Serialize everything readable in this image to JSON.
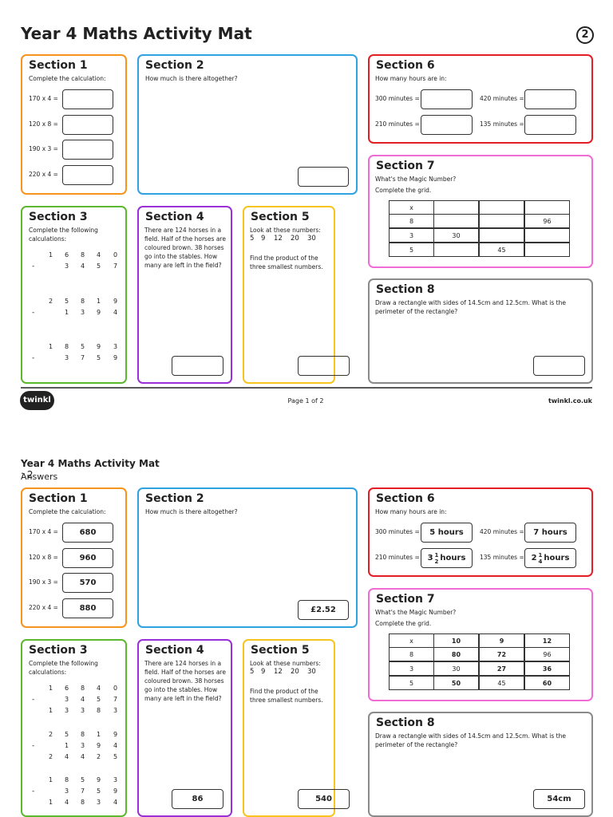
{
  "pages": [
    {
      "title": "Year 4 Maths Activity Mat",
      "badge": "2",
      "section1": {
        "heading": "Section 1",
        "prompt": "Complete the calculation:",
        "items": [
          {
            "question": "170 x 4 ="
          },
          {
            "question": "120 x 8 ="
          },
          {
            "question": "190 x 3 ="
          },
          {
            "question": "220 x 4 ="
          }
        ]
      },
      "section2": {
        "heading": "Section 2",
        "prompt": "How much is there altogether?"
      },
      "section3": {
        "heading": "Section 3",
        "prompt": "Complete the following calculations:",
        "sums": [
          {
            "top": "16840",
            "operator": "-",
            "bottom": "3457"
          },
          {
            "top": "25819",
            "operator": "-",
            "bottom": "1394"
          },
          {
            "top": "18593",
            "operator": "-",
            "bottom": "3759"
          }
        ]
      },
      "section4": {
        "heading": "Section 4",
        "text": "There are 124 horses in a field. Half of the horses are coloured brown. 38 horses go into the stables. How many are left in the field?"
      },
      "section5": {
        "heading": "Section 5",
        "prompt": "Look at these numbers:",
        "numbers": [
          "5",
          "9",
          "12",
          "20",
          "30"
        ],
        "text": "Find the product of the three smallest numbers."
      },
      "section6": {
        "heading": "Section 6",
        "prompt": "How many hours are in:",
        "items": [
          {
            "question": "300 minutes ="
          },
          {
            "question": "420 minutes ="
          },
          {
            "question": "210 minutes ="
          },
          {
            "question": "135 minutes ="
          }
        ]
      },
      "section7": {
        "heading": "Section 7",
        "prompt": "What's the Magic Number?",
        "prompt2": "Complete the grid.",
        "grid": [
          [
            "x",
            null,
            null,
            null
          ],
          [
            "8",
            null,
            null,
            "96"
          ],
          [
            "3",
            "30",
            null,
            null
          ],
          [
            "5",
            null,
            "45",
            null
          ]
        ]
      },
      "section8": {
        "heading": "Section 8",
        "text": "Draw a rectangle with sides of 14.5cm and 12.5cm. What is the perimeter of the rectangle?"
      }
    },
    {
      "title": "Year 4 Maths Activity Mat",
      "title_suffix": ": 2",
      "subtitle": "Answers",
      "section1": {
        "heading": "Section 1",
        "prompt": "Complete the calculation:",
        "items": [
          {
            "question": "170 x 4 =",
            "answer": "680"
          },
          {
            "question": "120 x 8 =",
            "answer": "960"
          },
          {
            "question": "190 x 3 =",
            "answer": "570"
          },
          {
            "question": "220 x 4 =",
            "answer": "880"
          }
        ]
      },
      "section2": {
        "heading": "Section 2",
        "prompt": "How much is there altogether?",
        "answer": "£2.52"
      },
      "section3": {
        "heading": "Section 3",
        "prompt": "Complete the following calculations:",
        "sums": [
          {
            "top": "16840",
            "operator": "-",
            "bottom": "3457",
            "result": "13383"
          },
          {
            "top": "25819",
            "operator": "-",
            "bottom": "1394",
            "result": "24425"
          },
          {
            "top": "18593",
            "operator": "-",
            "bottom": "3759",
            "result": "14834"
          }
        ]
      },
      "section4": {
        "heading": "Section 4",
        "text": "There are 124 horses in a field. Half of the horses are coloured brown. 38 horses go into the stables. How many are left in the field?",
        "answer": "86"
      },
      "section5": {
        "heading": "Section 5",
        "prompt": "Look at these numbers:",
        "numbers": [
          "5",
          "9",
          "12",
          "20",
          "30"
        ],
        "text": "Find the product of the three smallest numbers.",
        "answer": "540"
      },
      "section6": {
        "heading": "Section 6",
        "prompt": "How many hours are in:",
        "items": [
          {
            "question": "300 minutes =",
            "answer": {
              "text": "5 hours"
            }
          },
          {
            "question": "420 minutes =",
            "answer": {
              "text": "7 hours"
            }
          },
          {
            "question": "210 minutes =",
            "answer": {
              "whole": "3",
              "numerator": "1",
              "denominator": "2",
              "unit": "hours"
            }
          },
          {
            "question": "135 minutes =",
            "answer": {
              "whole": "2",
              "numerator": "1",
              "denominator": "4",
              "unit": "hours"
            }
          }
        ]
      },
      "section7": {
        "heading": "Section 7",
        "prompt": "What's the Magic Number?",
        "prompt2": "Complete the grid.",
        "grid": [
          [
            "x",
            "10",
            "9",
            "12"
          ],
          [
            "8",
            "80",
            "72",
            "96"
          ],
          [
            "3",
            "30",
            "27",
            "36"
          ],
          [
            "5",
            "50",
            "45",
            "60"
          ]
        ]
      },
      "section8": {
        "heading": "Section 8",
        "text": "Draw a rectangle with sides of 14.5cm and 12.5cm. What is the perimeter of the rectangle?",
        "answer": "54cm"
      }
    }
  ],
  "footer": {
    "logo": "twinkl",
    "page": "Page 1 of 2",
    "site": "twinkl.co.uk"
  }
}
